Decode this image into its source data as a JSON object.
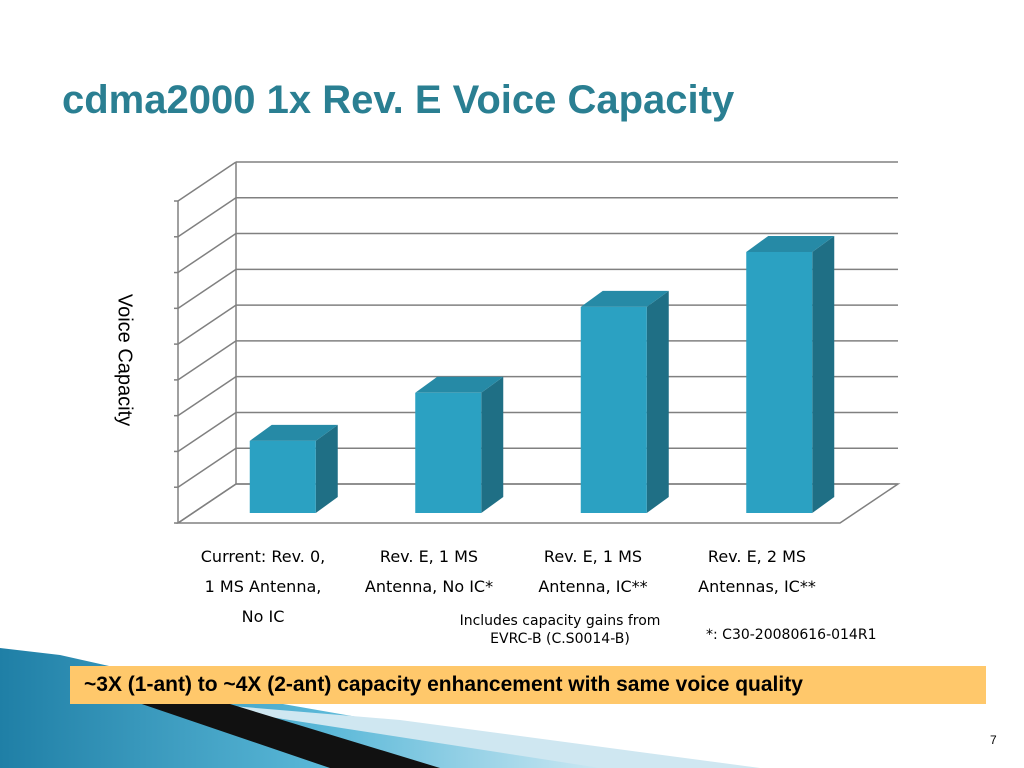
{
  "slide": {
    "title": "cdma2000 1x Rev. E Voice Capacity",
    "page_number": "7",
    "highlight": "~3X (1-ant) to ~4X (2-ant) capacity enhancement with same voice quality",
    "notes": {
      "evrc": "Includes capacity gains from\nEVRC-B (C.S0014-B)",
      "reference": "*: C30-20080616-014R1"
    }
  },
  "colors": {
    "title": "#2a7f92",
    "bar_front": "#2ba1c2",
    "bar_side": "#1f6f85",
    "bar_top": "#268aa6",
    "highlight_bg": "#ffc86b",
    "gridline": "#808080"
  },
  "chart_data": {
    "type": "bar",
    "style": "3d-column",
    "ylabel": "Voice Capacity",
    "xlabel": "",
    "categories": [
      "Current: Rev. 0,\n1 MS Antenna,\nNo IC",
      "Rev. E, 1 MS\nAntenna, No IC*",
      "Rev. E, 1 MS\nAntenna, IC**",
      "Rev. E, 2 MS\nAntennas, IC**"
    ],
    "values": [
      2.1,
      3.5,
      6.0,
      7.6
    ],
    "ylim": [
      0,
      9
    ],
    "y_tick_labels_shown": false,
    "grid": true
  }
}
